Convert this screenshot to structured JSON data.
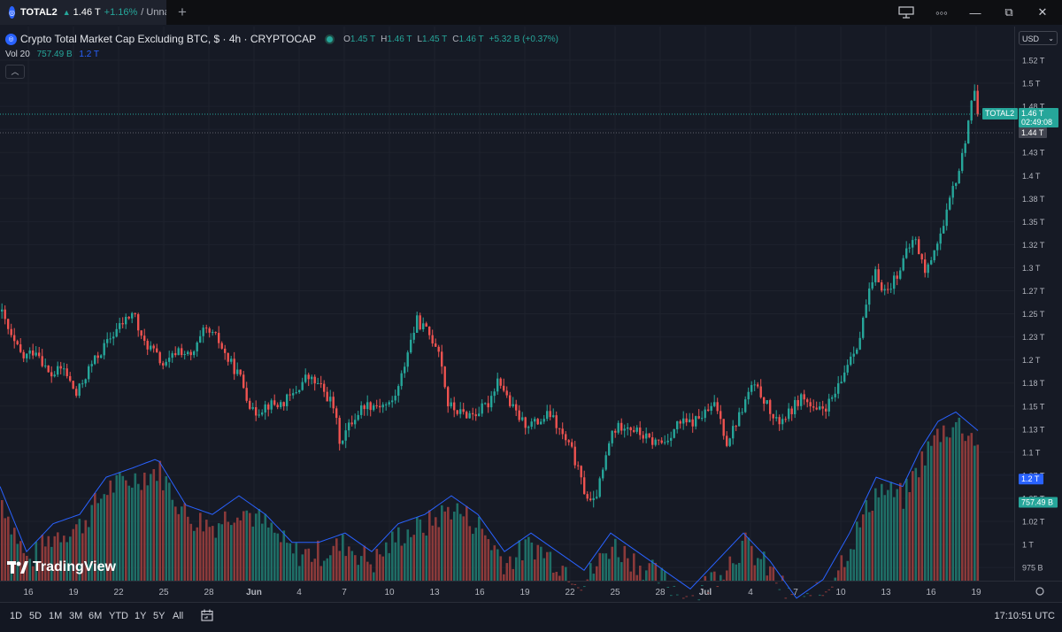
{
  "tab": {
    "symbol": "TOTAL2",
    "price": "1.46 T",
    "change": "+1.16%",
    "layout_name": "/ Unna"
  },
  "window_controls": {
    "new_tab": "+",
    "minimize": "—",
    "maximize": "⧉",
    "close": "✕",
    "more": "◦◦◦"
  },
  "legend": {
    "title": "Crypto Total Market Cap Excluding BTC, $ · 4h · CRYPTOCAP",
    "o_label": "O",
    "o": "1.45 T",
    "h_label": "H",
    "h": "1.46 T",
    "l_label": "L",
    "l": "1.45 T",
    "c_label": "C",
    "c": "1.46 T",
    "change": "+5.32 B (+0.37%)"
  },
  "volume": {
    "label": "Vol 20",
    "value": "757.49 B",
    "ma": "1.2 T"
  },
  "currency": "USD",
  "brand": "TradingView",
  "price_tags": {
    "symbol": "TOTAL2",
    "last": "1.46 T",
    "countdown": "02:49:08",
    "crosshair": "1.44 T",
    "vol_ma": "1.2 T",
    "vol_last": "757.49 B"
  },
  "bottom": {
    "ranges": [
      "1D",
      "5D",
      "1M",
      "3M",
      "6M",
      "YTD",
      "1Y",
      "5Y",
      "All"
    ],
    "clock": "17:10:51 UTC"
  },
  "colors": {
    "up": "#26a69a",
    "down": "#ef5350",
    "ma": "#2962ff",
    "background": "#161a25"
  },
  "chart_data": {
    "type": "candlestick",
    "y_ticks": [
      "1.52 T",
      "1.5 T",
      "1.48 T",
      "1.46 T",
      "1.43 T",
      "1.4 T",
      "1.38 T",
      "1.35 T",
      "1.32 T",
      "1.3 T",
      "1.27 T",
      "1.25 T",
      "1.23 T",
      "1.2 T",
      "1.18 T",
      "1.15 T",
      "1.13 T",
      "1.1 T",
      "1.07 T",
      "1.05 T",
      "1.02 T",
      "1 T",
      "975 B"
    ],
    "x_ticks": [
      "16",
      "19",
      "22",
      "25",
      "28",
      "Jun",
      "4",
      "7",
      "10",
      "13",
      "16",
      "19",
      "22",
      "25",
      "28",
      "Jul",
      "4",
      "7",
      "10",
      "13",
      "16",
      "19"
    ],
    "ylim_trillions": [
      0.975,
      1.52
    ],
    "price_path_trillions": [
      [
        0,
        1.25
      ],
      [
        12,
        1.22
      ],
      [
        25,
        1.2
      ],
      [
        40,
        1.21
      ],
      [
        55,
        1.18
      ],
      [
        70,
        1.19
      ],
      [
        85,
        1.16
      ],
      [
        100,
        1.19
      ],
      [
        115,
        1.21
      ],
      [
        130,
        1.23
      ],
      [
        140,
        1.24
      ],
      [
        150,
        1.25
      ],
      [
        158,
        1.22
      ],
      [
        170,
        1.21
      ],
      [
        185,
        1.19
      ],
      [
        200,
        1.21
      ],
      [
        215,
        1.2
      ],
      [
        230,
        1.23
      ],
      [
        245,
        1.22
      ],
      [
        255,
        1.2
      ],
      [
        270,
        1.18
      ],
      [
        285,
        1.14
      ],
      [
        300,
        1.15
      ],
      [
        315,
        1.15
      ],
      [
        330,
        1.16
      ],
      [
        345,
        1.18
      ],
      [
        360,
        1.17
      ],
      [
        375,
        1.15
      ],
      [
        383,
        1.11
      ],
      [
        395,
        1.13
      ],
      [
        410,
        1.15
      ],
      [
        425,
        1.15
      ],
      [
        440,
        1.15
      ],
      [
        450,
        1.17
      ],
      [
        460,
        1.21
      ],
      [
        470,
        1.24
      ],
      [
        480,
        1.23
      ],
      [
        495,
        1.21
      ],
      [
        505,
        1.15
      ],
      [
        520,
        1.14
      ],
      [
        535,
        1.14
      ],
      [
        550,
        1.15
      ],
      [
        562,
        1.18
      ],
      [
        575,
        1.15
      ],
      [
        590,
        1.13
      ],
      [
        605,
        1.13
      ],
      [
        620,
        1.14
      ],
      [
        632,
        1.12
      ],
      [
        645,
        1.1
      ],
      [
        658,
        1.06
      ],
      [
        668,
        1.04
      ],
      [
        678,
        1.07
      ],
      [
        690,
        1.12
      ],
      [
        705,
        1.13
      ],
      [
        720,
        1.12
      ],
      [
        735,
        1.11
      ],
      [
        750,
        1.11
      ],
      [
        765,
        1.13
      ],
      [
        780,
        1.13
      ],
      [
        795,
        1.14
      ],
      [
        808,
        1.15
      ],
      [
        820,
        1.11
      ],
      [
        835,
        1.14
      ],
      [
        848,
        1.17
      ],
      [
        860,
        1.16
      ],
      [
        875,
        1.13
      ],
      [
        890,
        1.14
      ],
      [
        905,
        1.16
      ],
      [
        920,
        1.14
      ],
      [
        935,
        1.15
      ],
      [
        948,
        1.17
      ],
      [
        958,
        1.2
      ],
      [
        970,
        1.22
      ],
      [
        978,
        1.26
      ],
      [
        988,
        1.29
      ],
      [
        1000,
        1.27
      ],
      [
        1012,
        1.29
      ],
      [
        1022,
        1.31
      ],
      [
        1032,
        1.33
      ],
      [
        1045,
        1.29
      ],
      [
        1055,
        1.32
      ],
      [
        1065,
        1.34
      ],
      [
        1075,
        1.38
      ],
      [
        1085,
        1.41
      ],
      [
        1092,
        1.45
      ],
      [
        1098,
        1.49
      ],
      [
        1105,
        1.46
      ]
    ],
    "volume_path_trillions": [
      [
        0,
        1.05
      ],
      [
        30,
        0.98
      ],
      [
        60,
        1.01
      ],
      [
        90,
        1.02
      ],
      [
        120,
        1.06
      ],
      [
        150,
        1.07
      ],
      [
        178,
        1.08
      ],
      [
        210,
        1.03
      ],
      [
        240,
        1.02
      ],
      [
        270,
        1.04
      ],
      [
        300,
        1.02
      ],
      [
        330,
        0.99
      ],
      [
        360,
        0.99
      ],
      [
        390,
        1.0
      ],
      [
        420,
        0.98
      ],
      [
        450,
        1.01
      ],
      [
        480,
        1.02
      ],
      [
        510,
        1.04
      ],
      [
        540,
        1.02
      ],
      [
        570,
        0.98
      ],
      [
        600,
        1.0
      ],
      [
        630,
        0.98
      ],
      [
        660,
        0.96
      ],
      [
        690,
        1.0
      ],
      [
        720,
        0.98
      ],
      [
        750,
        0.96
      ],
      [
        780,
        0.94
      ],
      [
        810,
        0.97
      ],
      [
        840,
        1.0
      ],
      [
        870,
        0.97
      ],
      [
        900,
        0.93
      ],
      [
        930,
        0.95
      ],
      [
        960,
        1.0
      ],
      [
        990,
        1.06
      ],
      [
        1020,
        1.05
      ],
      [
        1040,
        1.09
      ],
      [
        1060,
        1.12
      ],
      [
        1080,
        1.13
      ],
      [
        1105,
        1.11
      ]
    ]
  }
}
